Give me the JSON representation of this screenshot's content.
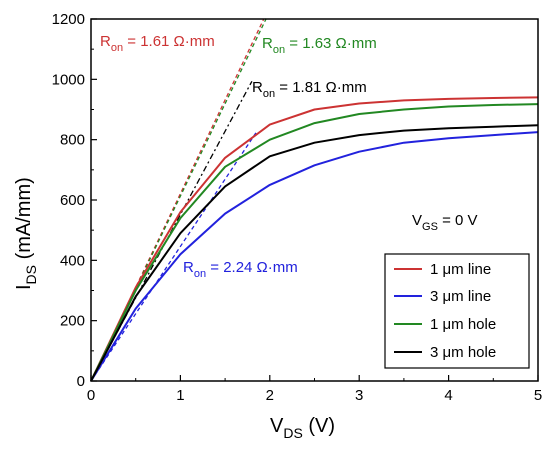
{
  "chart_data": {
    "type": "line",
    "xlabel": {
      "main": "V",
      "sub": "DS",
      "unit": " (V)"
    },
    "ylabel": {
      "main": "I",
      "sub": "DS",
      "unit": " (mA/mm)"
    },
    "xlim": [
      0,
      5
    ],
    "ylim": [
      0,
      1200
    ],
    "xticks": [
      "0",
      "1",
      "2",
      "3",
      "4",
      "5"
    ],
    "yticks": [
      "0",
      "200",
      "400",
      "600",
      "800",
      "1000",
      "1200"
    ],
    "grid": false,
    "legend_position": "bottom-right",
    "series": [
      {
        "name": "1 μm line",
        "color": "#cc3333",
        "x": [
          0,
          0.5,
          1,
          1.5,
          2,
          2.5,
          3,
          3.5,
          4,
          4.5,
          5
        ],
        "y": [
          0,
          310,
          560,
          740,
          850,
          900,
          920,
          930,
          935,
          938,
          940
        ]
      },
      {
        "name": "3 μm line",
        "color": "#2222dd",
        "x": [
          0,
          0.5,
          1,
          1.5,
          2,
          2.5,
          3,
          3.5,
          4,
          4.5,
          5
        ],
        "y": [
          0,
          240,
          420,
          555,
          650,
          715,
          760,
          790,
          805,
          815,
          825
        ]
      },
      {
        "name": "1 μm hole",
        "color": "#228822",
        "x": [
          0,
          0.5,
          1,
          1.5,
          2,
          2.5,
          3,
          3.5,
          4,
          4.5,
          5
        ],
        "y": [
          0,
          300,
          540,
          710,
          800,
          855,
          885,
          900,
          910,
          915,
          918
        ]
      },
      {
        "name": "3 μm hole",
        "color": "#000000",
        "x": [
          0,
          0.5,
          1,
          1.5,
          2,
          2.5,
          3,
          3.5,
          4,
          4.5,
          5
        ],
        "y": [
          0,
          280,
          490,
          645,
          745,
          790,
          815,
          830,
          838,
          843,
          848
        ]
      }
    ],
    "fit_lines": [
      {
        "label": {
          "main": "R",
          "sub": "on",
          "rest": " = 1.61 Ω·mm"
        },
        "color": "#cc3333",
        "slope": 621,
        "x_end": 1.93
      },
      {
        "label": {
          "main": "R",
          "sub": "on",
          "rest": " = 1.63 Ω·mm"
        },
        "color": "#228822",
        "slope": 613,
        "x_end": 1.96
      },
      {
        "label": {
          "main": "R",
          "sub": "on",
          "rest": " = 1.81 Ω·mm"
        },
        "color": "#000000",
        "slope": 552,
        "x_end": 1.8
      },
      {
        "label": {
          "main": "R",
          "sub": "on",
          "rest": " = 2.24 Ω·mm"
        },
        "color": "#2222dd",
        "slope": 446,
        "x_end": 1.85
      }
    ],
    "annotations": [
      {
        "main": "V",
        "sub": "GS",
        "rest": " = 0 V"
      }
    ]
  }
}
